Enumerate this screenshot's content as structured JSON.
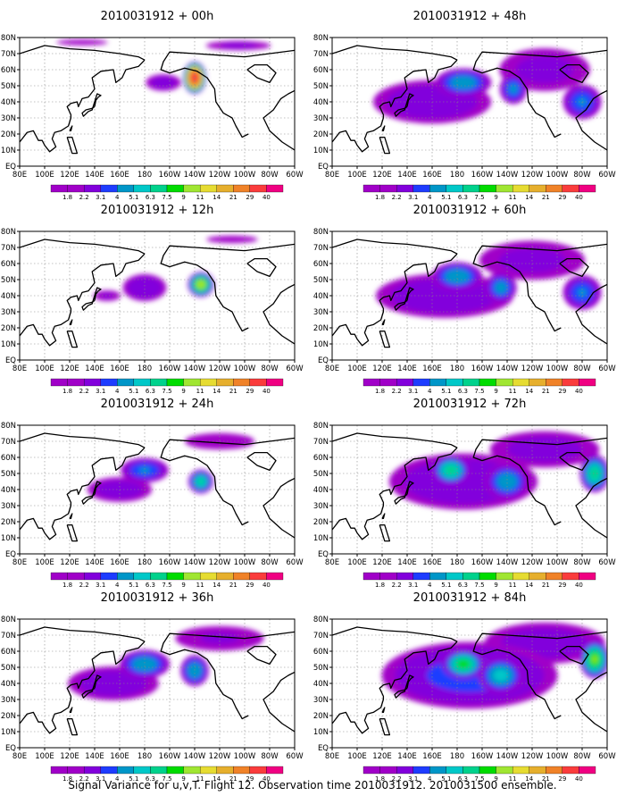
{
  "caption": "Signal Variance for u,v,T. Flight 12. Observation time 2010031912. 2010031500 ensemble.",
  "panels": [
    {
      "title": "2010031912 + 00h",
      "lead": 0
    },
    {
      "title": "2010031912 + 48h",
      "lead": 48
    },
    {
      "title": "2010031912 + 12h",
      "lead": 12
    },
    {
      "title": "2010031912 + 60h",
      "lead": 60
    },
    {
      "title": "2010031912 + 24h",
      "lead": 24
    },
    {
      "title": "2010031912 + 72h",
      "lead": 72
    },
    {
      "title": "2010031912 + 36h",
      "lead": 36
    },
    {
      "title": "2010031912 + 84h",
      "lead": 84
    }
  ],
  "chart_data": {
    "type": "heatmap",
    "x_tick_labels": [
      "80E",
      "100E",
      "120E",
      "140E",
      "160E",
      "180",
      "160W",
      "140W",
      "120W",
      "100W",
      "80W",
      "60W"
    ],
    "y_tick_labels": [
      "EQ",
      "10N",
      "20N",
      "30N",
      "40N",
      "50N",
      "60N",
      "70N",
      "80N"
    ],
    "xlim_lon_east": [
      80,
      300
    ],
    "ylim_lat": [
      0,
      80
    ],
    "grid": true,
    "colorbar": {
      "levels": [
        "1.8",
        "2.2",
        "3.1",
        "4",
        "5.1",
        "6.3",
        "7.5",
        "9",
        "11",
        "14",
        "21",
        "29",
        "40"
      ],
      "colors": [
        "#a000c8",
        "#8200dc",
        "#1e3cff",
        "#0096c8",
        "#00c8c8",
        "#00d28c",
        "#00dc00",
        "#a0e632",
        "#e6dc32",
        "#e6af2d",
        "#f08228",
        "#fa3c3c",
        "#f00082"
      ]
    },
    "blobs_note_units": "lon (deg E), lat (deg N), radii in deg, peak value",
    "panels": [
      {
        "lead": 0,
        "blobs": [
          {
            "lon": 220,
            "lat": 55,
            "rx": 10,
            "ry": 11,
            "peak": 40
          },
          {
            "lon": 195,
            "lat": 52,
            "rx": 22,
            "ry": 8,
            "peak": 2.6
          },
          {
            "lon": 255,
            "lat": 75,
            "rx": 45,
            "ry": 5,
            "peak": 2.3
          },
          {
            "lon": 130,
            "lat": 77,
            "rx": 45,
            "ry": 4,
            "peak": 2.0
          }
        ]
      },
      {
        "lead": 48,
        "blobs": [
          {
            "lon": 185,
            "lat": 52,
            "rx": 28,
            "ry": 11,
            "peak": 4.8
          },
          {
            "lon": 225,
            "lat": 48,
            "rx": 14,
            "ry": 12,
            "peak": 4.2
          },
          {
            "lon": 280,
            "lat": 40,
            "rx": 20,
            "ry": 14,
            "peak": 4.0
          },
          {
            "lon": 160,
            "lat": 40,
            "rx": 70,
            "ry": 20,
            "peak": 2.8
          },
          {
            "lon": 250,
            "lat": 60,
            "rx": 60,
            "ry": 22,
            "peak": 2.4
          }
        ]
      },
      {
        "lead": 12,
        "blobs": [
          {
            "lon": 225,
            "lat": 47,
            "rx": 12,
            "ry": 9,
            "peak": 11
          },
          {
            "lon": 180,
            "lat": 45,
            "rx": 25,
            "ry": 12,
            "peak": 3.0
          },
          {
            "lon": 150,
            "lat": 40,
            "rx": 20,
            "ry": 6,
            "peak": 2.2
          },
          {
            "lon": 250,
            "lat": 75,
            "rx": 45,
            "ry": 5,
            "peak": 2.0
          }
        ]
      },
      {
        "lead": 60,
        "blobs": [
          {
            "lon": 180,
            "lat": 52,
            "rx": 25,
            "ry": 11,
            "peak": 5.0
          },
          {
            "lon": 215,
            "lat": 45,
            "rx": 16,
            "ry": 12,
            "peak": 4.5
          },
          {
            "lon": 280,
            "lat": 42,
            "rx": 20,
            "ry": 14,
            "peak": 4.0
          },
          {
            "lon": 170,
            "lat": 40,
            "rx": 80,
            "ry": 20,
            "peak": 2.9
          },
          {
            "lon": 240,
            "lat": 62,
            "rx": 70,
            "ry": 20,
            "peak": 2.4
          }
        ]
      },
      {
        "lead": 24,
        "blobs": [
          {
            "lon": 225,
            "lat": 45,
            "rx": 12,
            "ry": 9,
            "peak": 6.5
          },
          {
            "lon": 180,
            "lat": 52,
            "rx": 25,
            "ry": 10,
            "peak": 4.0
          },
          {
            "lon": 160,
            "lat": 40,
            "rx": 40,
            "ry": 12,
            "peak": 2.6
          },
          {
            "lon": 240,
            "lat": 70,
            "rx": 55,
            "ry": 10,
            "peak": 2.1
          }
        ]
      },
      {
        "lead": 72,
        "blobs": [
          {
            "lon": 175,
            "lat": 52,
            "rx": 18,
            "ry": 11,
            "peak": 7.0
          },
          {
            "lon": 290,
            "lat": 50,
            "rx": 14,
            "ry": 14,
            "peak": 7.0
          },
          {
            "lon": 220,
            "lat": 45,
            "rx": 22,
            "ry": 14,
            "peak": 4.8
          },
          {
            "lon": 185,
            "lat": 45,
            "rx": 85,
            "ry": 25,
            "peak": 3.0
          },
          {
            "lon": 250,
            "lat": 65,
            "rx": 70,
            "ry": 18,
            "peak": 2.5
          }
        ]
      },
      {
        "lead": 36,
        "blobs": [
          {
            "lon": 180,
            "lat": 52,
            "rx": 25,
            "ry": 11,
            "peak": 5.0
          },
          {
            "lon": 220,
            "lat": 48,
            "rx": 14,
            "ry": 12,
            "peak": 5.0
          },
          {
            "lon": 155,
            "lat": 40,
            "rx": 55,
            "ry": 16,
            "peak": 2.7
          },
          {
            "lon": 240,
            "lat": 68,
            "rx": 65,
            "ry": 14,
            "peak": 2.2
          }
        ]
      },
      {
        "lead": 84,
        "blobs": [
          {
            "lon": 185,
            "lat": 52,
            "rx": 20,
            "ry": 11,
            "peak": 8.0
          },
          {
            "lon": 290,
            "lat": 55,
            "rx": 14,
            "ry": 14,
            "peak": 9.0
          },
          {
            "lon": 215,
            "lat": 45,
            "rx": 22,
            "ry": 14,
            "peak": 5.5
          },
          {
            "lon": 190,
            "lat": 45,
            "rx": 95,
            "ry": 28,
            "peak": 3.5
          },
          {
            "lon": 250,
            "lat": 65,
            "rx": 75,
            "ry": 20,
            "peak": 2.6
          }
        ]
      }
    ]
  }
}
